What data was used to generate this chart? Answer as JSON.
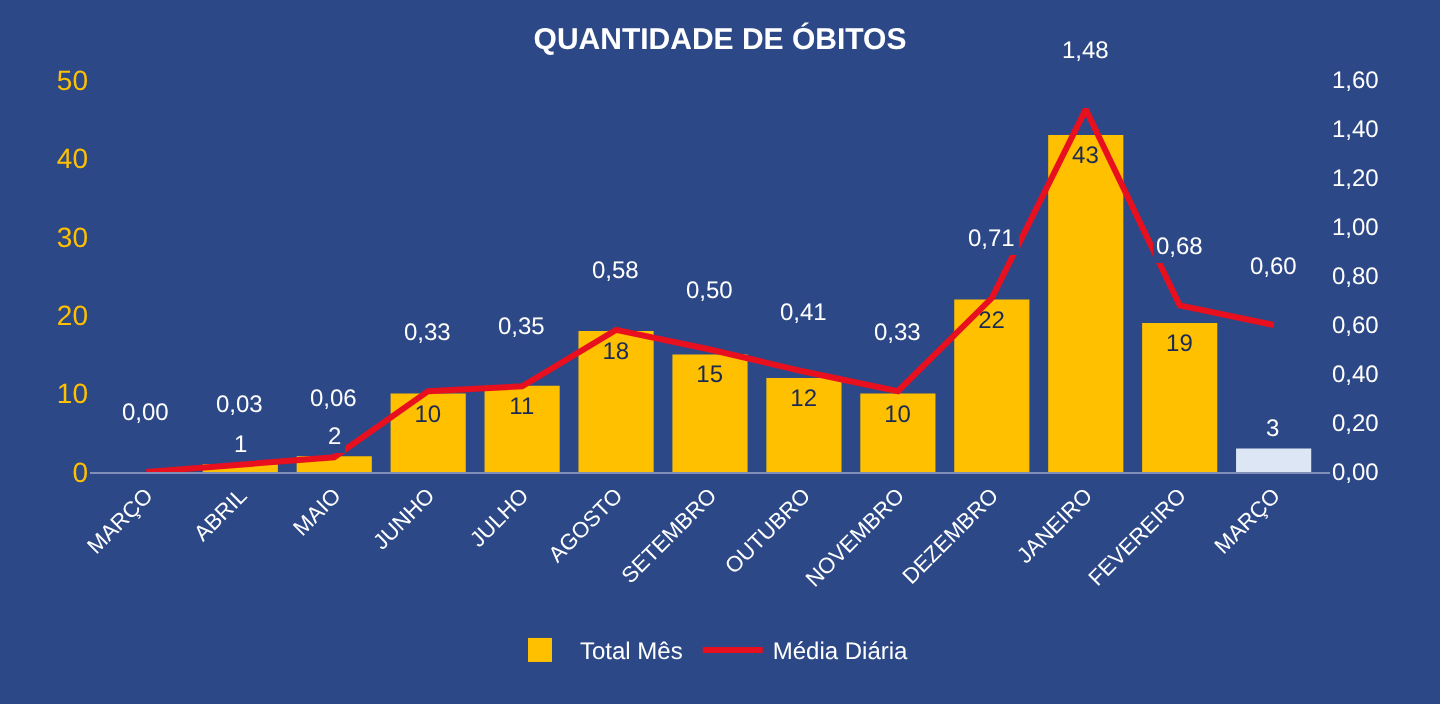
{
  "chart_data": {
    "type": "bar",
    "title": "QUANTIDADE DE ÓBITOS",
    "categories": [
      "MARÇO",
      "ABRIL",
      "MAIO",
      "JUNHO",
      "JULHO",
      "AGOSTO",
      "SETEMBRO",
      "OUTUBRO",
      "NOVEMBRO",
      "DEZEMBRO",
      "JANEIRO",
      "FEVEREIRO",
      "MARÇO"
    ],
    "series": [
      {
        "name": "Total Mês",
        "color": "#ffc000",
        "colors": [
          "#ffc000",
          "#ffc000",
          "#ffc000",
          "#ffc000",
          "#ffc000",
          "#ffc000",
          "#ffc000",
          "#ffc000",
          "#ffc000",
          "#ffc000",
          "#ffc000",
          "#ffc000",
          "#dce6f5"
        ],
        "values": [
          0,
          1,
          2,
          10,
          11,
          18,
          15,
          12,
          10,
          22,
          43,
          19,
          3
        ],
        "value_labels": [
          null,
          "1",
          "2",
          "10",
          "11",
          "18",
          "15",
          "12",
          "10",
          "22",
          "43",
          "19",
          "3"
        ]
      },
      {
        "name": "Média Diária",
        "type": "line",
        "axis": "y2",
        "color": "#e8101e",
        "values": [
          0.0,
          0.03,
          0.06,
          0.33,
          0.35,
          0.58,
          0.5,
          0.41,
          0.33,
          0.71,
          1.48,
          0.68,
          0.6
        ],
        "value_labels": [
          "0,00",
          "0,03",
          "0,06",
          "0,33",
          "0,35",
          "0,58",
          "0,50",
          "0,41",
          "0,33",
          "0,71",
          "1,48",
          "0,68",
          "0,60"
        ]
      }
    ],
    "ylim": [
      0,
      50
    ],
    "yticks": [
      0,
      10,
      20,
      30,
      40,
      50
    ],
    "y2lim": [
      0,
      1.6
    ],
    "y2ticks": [
      {
        "value": 0,
        "label": "0,00"
      },
      {
        "value": 0.2,
        "label": "0,20"
      },
      {
        "value": 0.4,
        "label": "0,40"
      },
      {
        "value": 0.6,
        "label": "0,60"
      },
      {
        "value": 0.8,
        "label": "0,80"
      },
      {
        "value": 1.0,
        "label": "1,00"
      },
      {
        "value": 1.2,
        "label": "1,20"
      },
      {
        "value": 1.4,
        "label": "1,40"
      },
      {
        "value": 1.6,
        "label": "1,60"
      }
    ],
    "grid": false,
    "legend": "bottom",
    "marker": "none",
    "line_style": "solid"
  }
}
